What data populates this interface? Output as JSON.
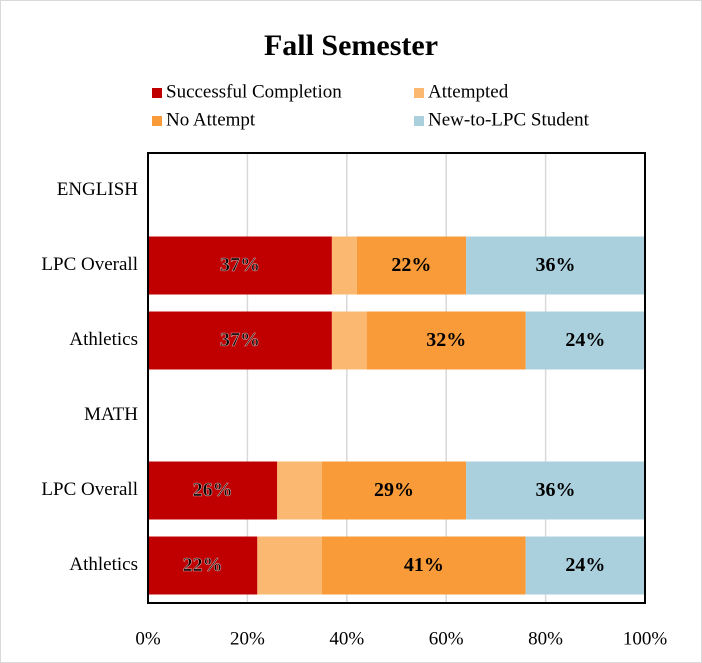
{
  "chart_data": {
    "type": "stacked_barh",
    "title": "Fall Semester",
    "categories": [
      "ENGLISH",
      "LPC Overall",
      "Athletics",
      "MATH",
      "LPC Overall",
      "Athletics"
    ],
    "series": [
      {
        "name": "Successful Completion",
        "color": "#c00000",
        "values": [
          null,
          37,
          37,
          null,
          26,
          22
        ],
        "value_labels": [
          null,
          "37%",
          "37%",
          null,
          "26%",
          "22%"
        ]
      },
      {
        "name": "Attempted",
        "color": "#fbb870",
        "values": [
          null,
          5,
          7,
          null,
          9,
          13
        ]
      },
      {
        "name": "No Attempt",
        "color": "#f89b38",
        "values": [
          null,
          22,
          32,
          null,
          29,
          41
        ],
        "value_labels": [
          null,
          "22%",
          "32%",
          null,
          "29%",
          "41%"
        ]
      },
      {
        "name": "New-to-LPC Student",
        "color": "#abd0dd",
        "values": [
          null,
          36,
          24,
          null,
          36,
          24
        ],
        "value_labels": [
          null,
          "36%",
          "24%",
          null,
          "36%",
          "24%"
        ]
      }
    ],
    "xlim": [
      0,
      100
    ],
    "xticks": [
      {
        "value": 0,
        "label": "0%"
      },
      {
        "value": 20,
        "label": "20%"
      },
      {
        "value": 40,
        "label": "40%"
      },
      {
        "value": 60,
        "label": "60%"
      },
      {
        "value": 80,
        "label": "80%"
      },
      {
        "value": 100,
        "label": "100%"
      }
    ],
    "grid": true,
    "legend": "top"
  }
}
